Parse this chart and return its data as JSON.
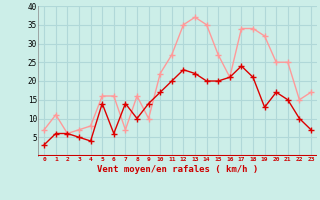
{
  "hours": [
    0,
    1,
    2,
    3,
    4,
    5,
    6,
    7,
    8,
    9,
    10,
    11,
    12,
    13,
    14,
    15,
    16,
    17,
    18,
    19,
    20,
    21,
    22,
    23
  ],
  "wind_mean": [
    3,
    6,
    6,
    5,
    4,
    14,
    6,
    14,
    10,
    14,
    17,
    20,
    23,
    22,
    20,
    20,
    21,
    24,
    21,
    13,
    17,
    15,
    10,
    7
  ],
  "wind_gust": [
    7,
    11,
    6,
    7,
    8,
    16,
    16,
    7,
    16,
    10,
    22,
    27,
    35,
    37,
    35,
    27,
    21,
    34,
    34,
    32,
    25,
    25,
    15,
    17
  ],
  "color_mean": "#dd0000",
  "color_gust": "#ff9999",
  "bg_color": "#cceee8",
  "grid_color": "#b0d8d8",
  "xlabel": "Vent moyen/en rafales ( km/h )",
  "xlabel_color": "#cc0000",
  "tick_color": "#cc0000",
  "ylim": [
    0,
    40
  ],
  "yticks": [
    0,
    5,
    10,
    15,
    20,
    25,
    30,
    35,
    40
  ],
  "marker": "+",
  "marker_size": 4,
  "line_width": 1.0
}
